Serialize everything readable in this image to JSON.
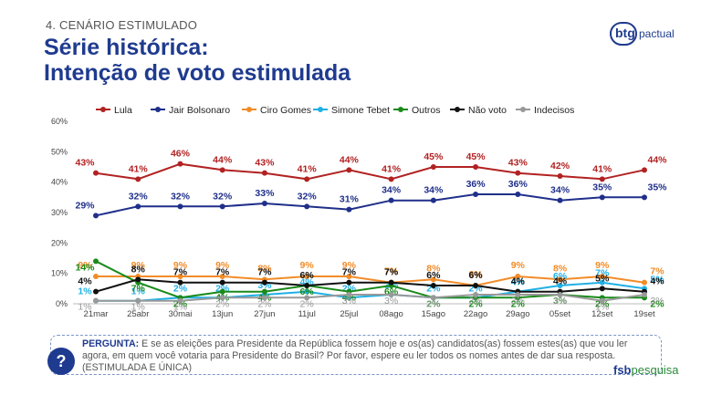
{
  "header": {
    "section": "4. CENÁRIO ESTIMULADO",
    "title_line1": "Série histórica:",
    "title_line2": "Intenção de voto estimulada"
  },
  "logo": {
    "btg_text1": "btg",
    "btg_text2": "pactual",
    "fsb_text1": "fsb",
    "fsb_text2": "pesquisa"
  },
  "question": {
    "label": "PERGUNTA:",
    "text": "E se as eleições para Presidente da República fossem hoje e os(as) candidatos(as) fossem estes(as) que vou ler agora, em quem você votaria para Presidente do Brasil? Por favor, espere eu ler todos os nomes antes de dar sua resposta. (ESTIMULADA E ÚNICA)",
    "icon": "question-icon"
  },
  "chart_data": {
    "type": "line",
    "categories": [
      "21mar",
      "25abr",
      "30mai",
      "13jun",
      "27jun",
      "11jul",
      "25jul",
      "08ago",
      "15ago",
      "22ago",
      "29ago",
      "05set",
      "12set",
      "19set"
    ],
    "ylim": [
      0,
      60
    ],
    "yticks": [
      "0%",
      "10%",
      "20%",
      "30%",
      "40%",
      "50%",
      "60%"
    ],
    "legend_position": "top",
    "series": [
      {
        "name": "Lula",
        "color": "#b22222",
        "values": [
          43,
          41,
          46,
          44,
          43,
          41,
          44,
          41,
          45,
          45,
          43,
          42,
          41,
          44
        ]
      },
      {
        "name": "Jair Bolsonaro",
        "color": "#1f2f8a",
        "values": [
          29,
          32,
          32,
          32,
          33,
          32,
          31,
          34,
          34,
          36,
          36,
          34,
          35,
          35
        ]
      },
      {
        "name": "Ciro Gomes",
        "color": "#f28c28",
        "values": [
          9,
          9,
          9,
          9,
          8,
          9,
          9,
          7,
          8,
          6,
          9,
          8,
          9,
          7
        ]
      },
      {
        "name": "Simone Tebet",
        "color": "#1fb0e6",
        "values": [
          1,
          1,
          2,
          2,
          3,
          4,
          2,
          3,
          2,
          2,
          4,
          6,
          7,
          5
        ]
      },
      {
        "name": "Outros",
        "color": "#1a8a1a",
        "values": [
          14,
          7,
          2,
          4,
          4,
          6,
          4,
          6,
          2,
          2,
          2,
          3,
          2,
          2
        ]
      },
      {
        "name": "Não voto",
        "color": "#111111",
        "values": [
          4,
          8,
          7,
          7,
          7,
          6,
          7,
          7,
          6,
          6,
          4,
          4,
          5,
          4
        ]
      },
      {
        "name": "Indecisos",
        "color": "#999999",
        "values": [
          1,
          1,
          1,
          2,
          2,
          2,
          3,
          3,
          2,
          3,
          3,
          3,
          1,
          3
        ]
      }
    ],
    "data_labels": [
      [
        "43%",
        "41%",
        "46%",
        "44%",
        "43%",
        "41%",
        "44%",
        "41%",
        "45%",
        "45%",
        "43%",
        "42%",
        "41%",
        "44%"
      ],
      [
        "29%",
        "32%",
        "32%",
        "32%",
        "33%",
        "32%",
        "31%",
        "34%",
        "34%",
        "36%",
        "36%",
        "34%",
        "35%",
        "35%"
      ],
      [
        "9%",
        "9%",
        "9%",
        "9%",
        "8%",
        "9%",
        "9%",
        "7%",
        "8%",
        "6%",
        "9%",
        "8%",
        "9%",
        "7%"
      ],
      [
        "1%",
        "1%",
        "2%",
        "2%",
        "3%",
        "4%",
        "2%",
        "3%",
        "2%",
        "2%",
        "4%",
        "6%",
        "7%",
        "5%"
      ],
      [
        "14%",
        "7%",
        "2%",
        "4%",
        "4%",
        "6%",
        "4%",
        "6%",
        "2%",
        "2%",
        "2%",
        "3%",
        "2%",
        "2%"
      ],
      [
        "4%",
        "8%",
        "7%",
        "7%",
        "7%",
        "6%",
        "7%",
        "7%",
        "6%",
        "6%",
        "4%",
        "4%",
        "5%",
        "4%"
      ],
      [
        "1%",
        "1%",
        "1%",
        "2%",
        "2%",
        "2%",
        "3%",
        "3%",
        "2%",
        "3%",
        "3%",
        "3%",
        "1%",
        "3%"
      ]
    ]
  }
}
